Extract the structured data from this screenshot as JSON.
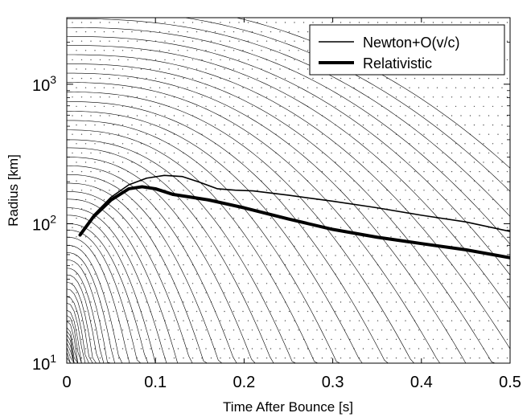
{
  "chart_data": {
    "type": "line",
    "xlabel": "Time After Bounce [s]",
    "ylabel": "Radius [km]",
    "xlim": [
      0,
      0.5
    ],
    "ylim": [
      10,
      3000
    ],
    "yscale": "log",
    "grid": false,
    "legend_position": "top-right",
    "x_ticks": [
      "0",
      "0.1",
      "0.2",
      "0.3",
      "0.4",
      "0.5"
    ],
    "y_ticks": [
      {
        "base": "10",
        "exp": "1",
        "value": 10
      },
      {
        "base": "10",
        "exp": "2",
        "value": 100
      },
      {
        "base": "10",
        "exp": "3",
        "value": 1000
      }
    ],
    "legend": [
      {
        "label": "Newton+O(v/c)",
        "style": "thin"
      },
      {
        "label": "Relativistic",
        "style": "thick"
      }
    ],
    "series": [
      {
        "name": "Newton+O(v/c)",
        "x": [
          0.015,
          0.03,
          0.05,
          0.07,
          0.09,
          0.11,
          0.13,
          0.15,
          0.17,
          0.19,
          0.21,
          0.25,
          0.3,
          0.35,
          0.4,
          0.45,
          0.5
        ],
        "y": [
          85,
          115,
          155,
          190,
          212,
          222,
          218,
          198,
          178,
          174,
          172,
          160,
          145,
          130,
          115,
          103,
          88
        ]
      },
      {
        "name": "Relativistic",
        "x": [
          0.015,
          0.03,
          0.05,
          0.07,
          0.085,
          0.1,
          0.12,
          0.14,
          0.16,
          0.2,
          0.25,
          0.3,
          0.35,
          0.4,
          0.45,
          0.5
        ],
        "y": [
          83,
          112,
          148,
          178,
          184,
          178,
          162,
          155,
          148,
          130,
          108,
          91,
          80,
          72,
          65,
          57
        ]
      }
    ],
    "background_mass_shells": {
      "description_in_figure": "many thin unlabeled trajectories",
      "count": 48,
      "initial_radii_km": [
        11,
        12,
        13,
        14,
        15,
        16,
        17,
        18,
        20,
        22,
        24,
        27,
        30,
        34,
        38,
        43,
        48,
        55,
        62,
        70,
        80,
        90,
        100,
        115,
        130,
        150,
        170,
        195,
        225,
        260,
        300,
        350,
        400,
        470,
        550,
        640,
        750,
        880,
        1030,
        1200,
        1400,
        1630,
        1900,
        2200,
        2550,
        2950,
        3400,
        3950
      ],
      "fall_times_s": [
        0.003,
        0.004,
        0.005,
        0.006,
        0.007,
        0.008,
        0.009,
        0.01,
        0.012,
        0.014,
        0.016,
        0.019,
        0.022,
        0.026,
        0.03,
        0.035,
        0.04,
        0.046,
        0.053,
        0.06,
        0.07,
        0.08,
        0.09,
        0.1,
        0.112,
        0.125,
        0.14,
        0.155,
        0.172,
        0.19,
        0.21,
        0.232,
        0.255,
        0.28,
        0.305,
        0.332,
        0.36,
        0.39,
        0.42,
        0.45,
        0.48,
        0.51,
        0.54,
        0.57,
        0.6,
        0.63,
        0.66,
        0.69
      ],
      "settle_radius_km": 10
    }
  }
}
